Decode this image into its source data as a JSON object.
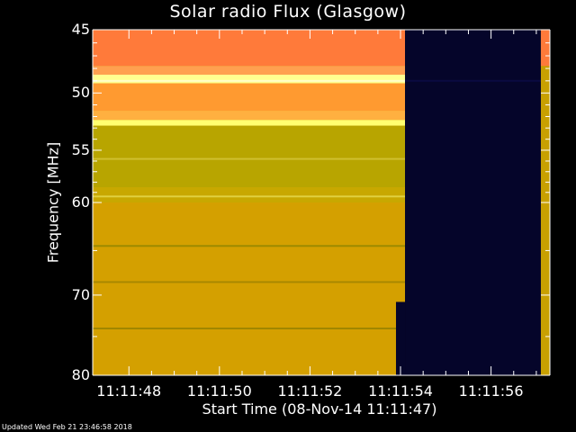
{
  "chart_data": {
    "type": "heatmap",
    "title": "Solar radio Flux (Glasgow)",
    "ylabel": "Frequency [MHz]",
    "xlabel": "Start Time (08-Nov-14 11:11:47)",
    "y_ticks": [
      "45",
      "50",
      "55",
      "60",
      "70",
      "80"
    ],
    "y_tick_values": [
      45,
      50,
      55,
      60,
      70,
      80
    ],
    "x_ticks": [
      "11:11:48",
      "11:11:50",
      "11:11:52",
      "11:11:54",
      "11:11:56"
    ],
    "x_tick_values": [
      48,
      50,
      52,
      54,
      56
    ],
    "xlim": [
      47.2,
      57.3
    ],
    "ylim": [
      45,
      80
    ],
    "y_scale": "log",
    "data_end_time": 53.9,
    "data_end_time_upper": 54.1,
    "data_end_freq_split": 70.8,
    "background_color": "#c8a000",
    "gap_color": "#05052a",
    "bands": [
      {
        "from": 45,
        "to": 47.8,
        "color": "#ff7a3a"
      },
      {
        "from": 47.8,
        "to": 48.5,
        "color": "#ffa050"
      },
      {
        "from": 48.5,
        "to": 49.2,
        "color": "#ffff90"
      },
      {
        "from": 49.2,
        "to": 51.5,
        "color": "#ff9a30"
      },
      {
        "from": 51.5,
        "to": 52.3,
        "color": "#ffb040"
      },
      {
        "from": 52.3,
        "to": 52.8,
        "color": "#ffff70"
      },
      {
        "from": 52.8,
        "to": 58.5,
        "color": "#b8a500"
      },
      {
        "from": 58.5,
        "to": 60,
        "color": "#c8a800"
      },
      {
        "from": 60,
        "to": 80,
        "color": "#d4a000"
      }
    ],
    "lines": [
      {
        "freq": 49.0,
        "color": "#ffffc8"
      },
      {
        "freq": 55.8,
        "color": "#d0c030"
      },
      {
        "freq": 59.4,
        "color": "#e0d040"
      },
      {
        "freq": 64.5,
        "color": "#9c8a00"
      },
      {
        "freq": 68.5,
        "color": "#a88800"
      },
      {
        "freq": 74.0,
        "color": "#a08600"
      }
    ]
  },
  "footer": "Updated Wed Feb 21 23:46:58 2018"
}
